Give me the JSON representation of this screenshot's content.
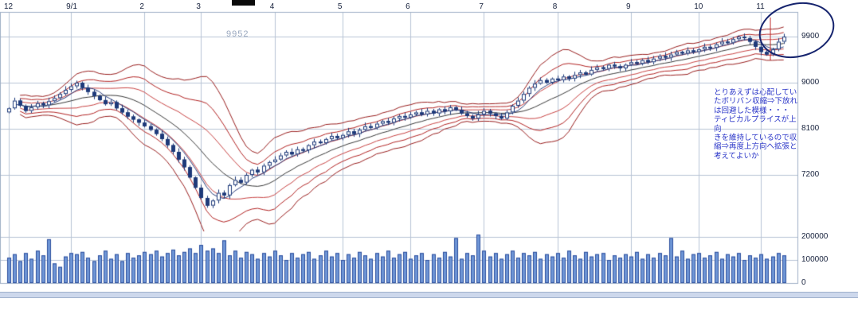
{
  "price_marker": {
    "value": "9952"
  },
  "annotation": {
    "text": "とりあえずは心配してい\nたボリバン収縮⇒下放れ\nは回避した模様・・・\nティピカルプライスが上向\nきを維持しているので収\n縮⇒再度上方向へ拡張と\n考えてよいか"
  },
  "colors": {
    "grid": "#b9c5d6",
    "grid_strong": "#9fb0c6",
    "candle": "#1e3a7a",
    "band_outer": "#9a1f1f",
    "band_mid": "#b32424",
    "band_inner": "#c94444",
    "ma_center": "#3a3a3a",
    "ma_fast": "#2c3f7c",
    "volume_fill": "#6f96d6",
    "volume_stroke": "#2d4f9e",
    "annotation_blue": "#2a35c8",
    "ellipse_navy": "#16246e",
    "marker_gray": "#9aa8bf"
  },
  "chart_data": {
    "type": "candlestick",
    "title": "",
    "xlabel": "",
    "ylabel": "",
    "legend": "none",
    "grid": true,
    "overlays": [
      "bollinger-bands +/-1,2,3 sigma (red)",
      "moving-average center (dark)",
      "fast moving-average (navy)",
      "volume bars (blue, lower pane)"
    ],
    "x_ticks": [
      {
        "label": "12",
        "index": 0
      },
      {
        "label": "9/1",
        "index": 11
      },
      {
        "label": "2",
        "index": 24
      },
      {
        "label": "3",
        "index": 34
      },
      {
        "label": "4",
        "index": 47
      },
      {
        "label": "5",
        "index": 59
      },
      {
        "label": "6",
        "index": 71
      },
      {
        "label": "7",
        "index": 84
      },
      {
        "label": "8",
        "index": 97
      },
      {
        "label": "9",
        "index": 110
      },
      {
        "label": "10",
        "index": 122
      },
      {
        "label": "11",
        "index": 133
      }
    ],
    "price_ticks": [
      9900,
      9000,
      8100,
      7200
    ],
    "volume_ticks": [
      200000,
      100000,
      0
    ],
    "price_ylim": [
      6400,
      10400
    ],
    "volume_ylim": [
      0,
      220000
    ],
    "closes": [
      8500,
      8650,
      8550,
      8450,
      8520,
      8600,
      8560,
      8640,
      8700,
      8780,
      8860,
      8930,
      9000,
      8900,
      8820,
      8740,
      8660,
      8580,
      8620,
      8500,
      8420,
      8340,
      8280,
      8220,
      8150,
      8080,
      8000,
      7900,
      7780,
      7650,
      7500,
      7350,
      7150,
      6950,
      6750,
      6600,
      6700,
      6850,
      6800,
      7000,
      7100,
      7050,
      7200,
      7300,
      7250,
      7380,
      7450,
      7500,
      7580,
      7650,
      7600,
      7700,
      7680,
      7780,
      7850,
      7820,
      7900,
      7960,
      7920,
      7980,
      8050,
      8000,
      8080,
      8150,
      8120,
      8200,
      8250,
      8220,
      8300,
      8350,
      8320,
      8380,
      8420,
      8380,
      8450,
      8400,
      8480,
      8440,
      8520,
      8470,
      8400,
      8350,
      8300,
      8380,
      8450,
      8400,
      8350,
      8300,
      8420,
      8550,
      8650,
      8780,
      8900,
      8980,
      9050,
      9000,
      9080,
      9050,
      9120,
      9080,
      9150,
      9200,
      9160,
      9250,
      9300,
      9270,
      9350,
      9320,
      9280,
      9350,
      9400,
      9370,
      9440,
      9400,
      9470,
      9520,
      9490,
      9550,
      9600,
      9570,
      9630,
      9600,
      9650,
      9700,
      9680,
      9750,
      9800,
      9780,
      9850,
      9900,
      9870,
      9800,
      9700,
      9600,
      9550,
      9650,
      9800,
      9900
    ],
    "volumes": [
      110000,
      125000,
      95000,
      130000,
      105000,
      140000,
      120000,
      190000,
      85000,
      70000,
      115000,
      130000,
      125000,
      135000,
      110000,
      95000,
      120000,
      140000,
      105000,
      125000,
      95000,
      130000,
      110000,
      120000,
      135000,
      125000,
      140000,
      115000,
      130000,
      145000,
      120000,
      135000,
      150000,
      130000,
      165000,
      140000,
      150000,
      130000,
      185000,
      120000,
      140000,
      110000,
      135000,
      125000,
      105000,
      130000,
      115000,
      140000,
      120000,
      100000,
      130000,
      110000,
      125000,
      135000,
      105000,
      120000,
      140000,
      115000,
      130000,
      100000,
      125000,
      110000,
      135000,
      120000,
      105000,
      130000,
      115000,
      140000,
      110000,
      125000,
      135000,
      105000,
      120000,
      130000,
      100000,
      125000,
      110000,
      135000,
      115000,
      195000,
      105000,
      130000,
      120000,
      210000,
      140000,
      115000,
      130000,
      105000,
      125000,
      140000,
      110000,
      130000,
      120000,
      135000,
      105000,
      125000,
      115000,
      130000,
      110000,
      140000,
      120000,
      105000,
      135000,
      115000,
      125000,
      130000,
      100000,
      120000,
      110000,
      125000,
      115000,
      135000,
      105000,
      125000,
      110000,
      130000,
      120000,
      195000,
      115000,
      140000,
      105000,
      125000,
      130000,
      110000,
      120000,
      135000,
      105000,
      125000,
      115000,
      130000,
      100000,
      120000,
      110000,
      125000,
      105000,
      115000,
      130000,
      120000
    ]
  }
}
